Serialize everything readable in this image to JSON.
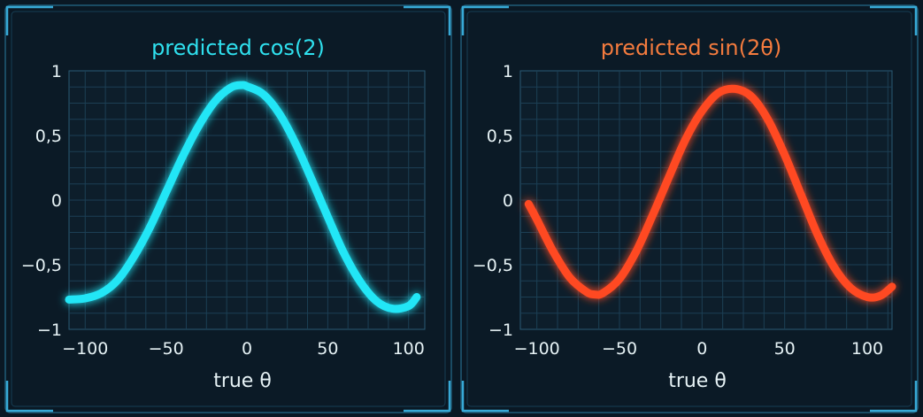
{
  "chart_data": [
    {
      "type": "line",
      "title": "predicted cos(2)",
      "xlabel": "true θ",
      "ylabel": "",
      "xlim": [
        -110,
        110
      ],
      "ylim": [
        -1,
        1
      ],
      "xticks": [
        -100,
        -50,
        0,
        50,
        100
      ],
      "xtick_labels": [
        "−100",
        "−50",
        "0",
        "50",
        "100"
      ],
      "yticks": [
        1,
        0.5,
        0,
        -0.5,
        -1
      ],
      "ytick_labels": [
        "1",
        "0,5",
        "0",
        "−0,5",
        "−1"
      ],
      "grid": true,
      "colors": {
        "line": "#22e6f6",
        "title": "#2fe0ee"
      },
      "series": [
        {
          "x": [
            -110,
            -100,
            -90,
            -80,
            -70,
            -60,
            -50,
            -40,
            -30,
            -20,
            -10,
            -3,
            0,
            10,
            20,
            30,
            40,
            50,
            60,
            70,
            80,
            90,
            100,
            105
          ],
          "y": [
            -0.77,
            -0.76,
            -0.72,
            -0.62,
            -0.44,
            -0.21,
            0.06,
            0.33,
            0.57,
            0.76,
            0.87,
            0.89,
            0.88,
            0.82,
            0.67,
            0.44,
            0.16,
            -0.13,
            -0.41,
            -0.63,
            -0.78,
            -0.84,
            -0.82,
            -0.75
          ]
        }
      ]
    },
    {
      "type": "line",
      "title": "predicted sin(2θ)",
      "xlabel": "true θ",
      "ylabel": "",
      "xlim": [
        -110,
        115
      ],
      "ylim": [
        -1,
        1
      ],
      "xticks": [
        -100,
        -50,
        0,
        50,
        100
      ],
      "xtick_labels": [
        "−100",
        "−50",
        "0",
        "50",
        "100"
      ],
      "yticks": [
        1,
        0.5,
        0,
        -0.5,
        -1
      ],
      "ytick_labels": [
        "1",
        "0,5",
        "0",
        "−0,5",
        "−1"
      ],
      "grid": true,
      "colors": {
        "line": "#ff4a22",
        "title": "#f47b3e"
      },
      "series": [
        {
          "x": [
            -105,
            -100,
            -90,
            -80,
            -70,
            -65,
            -60,
            -50,
            -40,
            -30,
            -20,
            -10,
            0,
            10,
            20,
            30,
            40,
            50,
            60,
            70,
            80,
            90,
            100,
            108,
            115
          ],
          "y": [
            -0.03,
            -0.15,
            -0.4,
            -0.6,
            -0.71,
            -0.73,
            -0.72,
            -0.61,
            -0.4,
            -0.12,
            0.18,
            0.47,
            0.69,
            0.83,
            0.86,
            0.8,
            0.62,
            0.35,
            0.04,
            -0.27,
            -0.52,
            -0.68,
            -0.75,
            -0.74,
            -0.67
          ]
        }
      ]
    }
  ]
}
